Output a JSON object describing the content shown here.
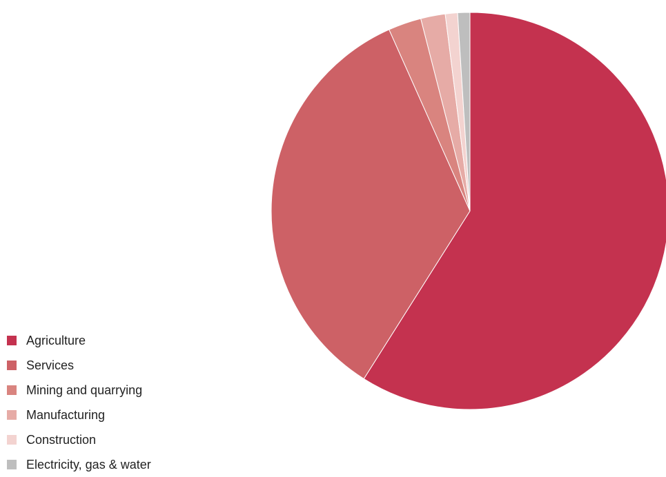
{
  "chart_data": {
    "type": "pie",
    "series": [
      {
        "values": [
          {
            "label": "Agriculture",
            "value": 59.2,
            "color": "#c4324f"
          },
          {
            "label": "Services",
            "value": 34.5,
            "color": "#cd6166"
          },
          {
            "label": "Mining and quarrying",
            "value": 2.7,
            "color": "#d9847f"
          },
          {
            "label": "Manufacturing",
            "value": 2.0,
            "color": "#e6aba6"
          },
          {
            "label": "Construction",
            "value": 1.0,
            "color": "#f3d3d0"
          },
          {
            "label": "Electricity, gas & water",
            "value": 1.0,
            "color": "#bebebe"
          }
        ]
      }
    ],
    "start_angle": "12 o'clock",
    "direction": "clockwise",
    "legend_position": "bottom-left"
  }
}
